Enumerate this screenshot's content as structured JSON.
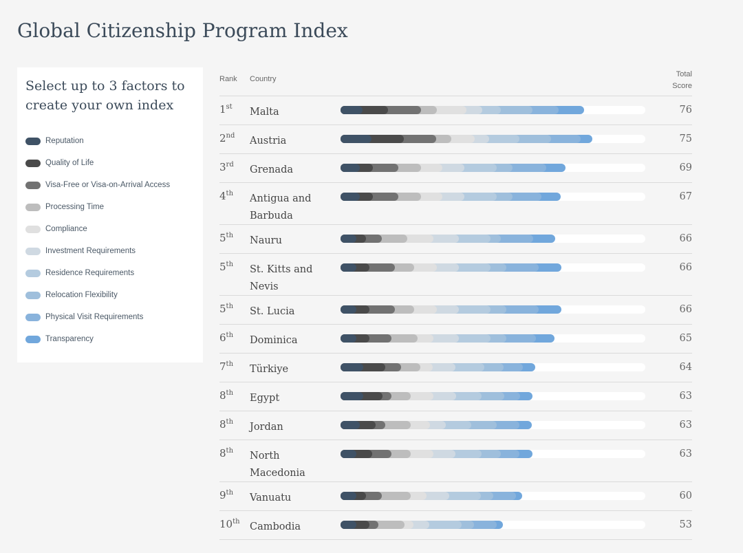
{
  "page": {
    "title": "Global Citizenship Program Index"
  },
  "panel": {
    "heading": "Select up to 3 factors to create your own index"
  },
  "factors": [
    {
      "label": "Reputation",
      "color": "#3f5266"
    },
    {
      "label": "Quality of Life",
      "color": "#4a4a4a"
    },
    {
      "label": "Visa-Free or Visa-on-Arrival Access",
      "color": "#727272"
    },
    {
      "label": "Processing Time",
      "color": "#bdbdbd"
    },
    {
      "label": "Compliance",
      "color": "#e0e0e0"
    },
    {
      "label": "Investment Requirements",
      "color": "#cfd9e2"
    },
    {
      "label": "Residence Requirements",
      "color": "#b4cbdf"
    },
    {
      "label": "Relocation Flexibility",
      "color": "#9fbfdc"
    },
    {
      "label": "Physical Visit Requirements",
      "color": "#89b3dc"
    },
    {
      "label": "Transparency",
      "color": "#71a7dc"
    }
  ],
  "table": {
    "header_rank": "Rank",
    "header_country": "Country",
    "header_score": "Total Score"
  },
  "chart_data": {
    "type": "bar",
    "stacked": true,
    "xlim": [
      0,
      100
    ],
    "series_names": [
      "Reputation",
      "Quality of Life",
      "Visa-Free or Visa-on-Arrival Access",
      "Processing Time",
      "Compliance",
      "Investment Requirements",
      "Residence Requirements",
      "Relocation Flexibility",
      "Physical Visit Requirements",
      "Transparency"
    ],
    "rows": [
      {
        "rank": "1",
        "suffix": "st",
        "country": "Malta",
        "score": "76",
        "values": [
          7.2,
          8.4,
          10.9,
          5.0,
          9.9,
          5.1,
          6.0,
          10.5,
          8.5,
          8.4
        ]
      },
      {
        "rank": "2",
        "suffix": "nd",
        "country": "Austria",
        "score": "75",
        "values": [
          10.1,
          10.6,
          10.6,
          5.0,
          7.7,
          4.7,
          9.9,
          10.5,
          9.6,
          4.0
        ]
      },
      {
        "rank": "3",
        "suffix": "rd",
        "country": "Grenada",
        "score": "69",
        "values": [
          6.3,
          4.2,
          8.4,
          7.4,
          7.2,
          7.2,
          10.5,
          5.2,
          11.1,
          6.3
        ]
      },
      {
        "rank": "4",
        "suffix": "th",
        "country": "Antigua and Barbuda",
        "score": "67",
        "values": [
          6.3,
          4.2,
          8.4,
          7.4,
          7.2,
          7.2,
          10.5,
          5.2,
          9.6,
          6.3
        ]
      },
      {
        "rank": "5",
        "suffix": "th",
        "country": "Nauru",
        "score": "66",
        "values": [
          5.1,
          3.2,
          5.2,
          8.4,
          8.5,
          8.4,
          10.5,
          3.2,
          10.6,
          7.4
        ]
      },
      {
        "rank": "5",
        "suffix": "th",
        "country": "St. Kitts and Nevis",
        "score": "66",
        "values": [
          5.2,
          4.2,
          8.4,
          6.3,
          7.4,
          7.3,
          10.5,
          5.2,
          10.5,
          7.4
        ]
      },
      {
        "rank": "5",
        "suffix": "th",
        "country": "St. Lucia",
        "score": "66",
        "values": [
          5.2,
          4.2,
          8.4,
          6.3,
          7.4,
          7.3,
          10.5,
          5.2,
          10.5,
          7.4
        ]
      },
      {
        "rank": "6",
        "suffix": "th",
        "country": "Dominica",
        "score": "65",
        "values": [
          5.2,
          4.2,
          7.4,
          8.4,
          5.2,
          8.4,
          10.5,
          5.2,
          9.5,
          6.3
        ]
      },
      {
        "rank": "7",
        "suffix": "th",
        "country": "Türkiye",
        "score": "64",
        "values": [
          7.4,
          7.3,
          5.2,
          6.3,
          4.1,
          7.4,
          9.5,
          6.3,
          6.3,
          4.1
        ]
      },
      {
        "rank": "8",
        "suffix": "th",
        "country": "Egypt",
        "score": "63",
        "values": [
          7.4,
          6.3,
          3.1,
          6.3,
          7.4,
          7.4,
          8.4,
          7.4,
          5.2,
          4.1
        ]
      },
      {
        "rank": "8",
        "suffix": "th",
        "country": "Jordan",
        "score": "63",
        "values": [
          6.3,
          5.2,
          3.1,
          8.4,
          6.3,
          5.2,
          8.4,
          8.4,
          7.4,
          4.1
        ]
      },
      {
        "rank": "8",
        "suffix": "th",
        "country": "North Macedonia",
        "score": "63",
        "values": [
          5.2,
          5.2,
          6.3,
          6.3,
          7.4,
          7.4,
          8.4,
          6.3,
          6.3,
          4.1
        ]
      },
      {
        "rank": "9",
        "suffix": "th",
        "country": "Vanuatu",
        "score": "60",
        "values": [
          5.2,
          3.1,
          5.2,
          9.5,
          5.2,
          7.4,
          10.5,
          4.1,
          7.4,
          2.1
        ]
      },
      {
        "rank": "10",
        "suffix": "th",
        "country": "Cambodia",
        "score": "53",
        "values": [
          5.2,
          4.2,
          3.1,
          8.4,
          3.1,
          5.2,
          10.5,
          4.2,
          7.3,
          2.1
        ]
      }
    ]
  }
}
